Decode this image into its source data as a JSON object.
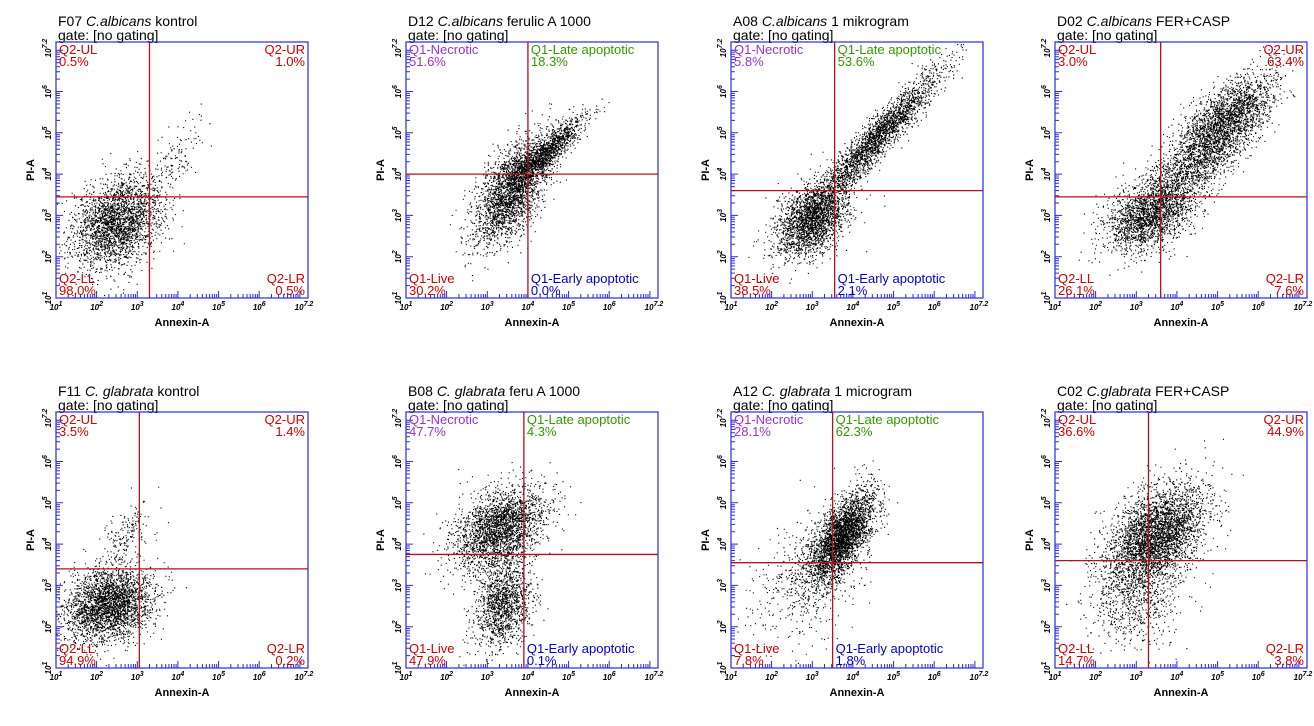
{
  "chart_data": [
    {
      "type": "scatter",
      "title_prefix": "F07",
      "title_species": "C.albicans",
      "title_suffix": "kontrol",
      "gate": "gate: [no gating]",
      "xlabel": "Annexin-A",
      "ylabel": "PI-A",
      "x_scale": "log",
      "y_scale": "log",
      "xlim": [
        1,
        7.2
      ],
      "ylim": [
        1,
        7.2
      ],
      "x_ticks": [
        "10^1",
        "10^2",
        "10^3",
        "10^4",
        "10^5",
        "10^6",
        "10^7.2"
      ],
      "y_ticks": [
        "10^1",
        "10^2",
        "10^3",
        "10^4",
        "10^5",
        "10^6",
        "10^7.2"
      ],
      "gate_x": 3.3,
      "gate_y": 3.45,
      "quadrants": {
        "ul": {
          "label": "Q2-UL",
          "value": "0.5%",
          "color": "#cc0000"
        },
        "ur": {
          "label": "Q2-UR",
          "value": "1.0%",
          "color": "#cc0000"
        },
        "ll": {
          "label": "Q2-LL",
          "value": "98.0%",
          "color": "#cc0000"
        },
        "lr": {
          "label": "Q2-LR",
          "value": "0.5%",
          "color": "#cc0000"
        }
      },
      "clusters": [
        {
          "x": 2.5,
          "y": 2.85,
          "sx": 0.55,
          "sy": 0.55,
          "r": 0.3,
          "n": 2600
        },
        {
          "x": 4.0,
          "y": 4.4,
          "sx": 0.3,
          "sy": 0.45,
          "r": 0.6,
          "n": 120
        }
      ]
    },
    {
      "type": "scatter",
      "title_prefix": "D12",
      "title_species": "C.albicans",
      "title_suffix": "ferulic A 1000",
      "gate": "gate: [no gating]",
      "xlabel": "Annexin-A",
      "ylabel": "PI-A",
      "x_scale": "log",
      "y_scale": "log",
      "xlim": [
        1,
        7.2
      ],
      "ylim": [
        1,
        7.2
      ],
      "x_ticks": [
        "10^1",
        "10^2",
        "10^3",
        "10^4",
        "10^5",
        "10^6",
        "10^7.2"
      ],
      "y_ticks": [
        "10^1",
        "10^2",
        "10^3",
        "10^4",
        "10^5",
        "10^6",
        "10^7.2"
      ],
      "gate_x": 4.0,
      "gate_y": 4.0,
      "quadrants": {
        "ul": {
          "label": "Q1-Necrotic",
          "value": "51.6%",
          "color": "#9933cc"
        },
        "ur": {
          "label": "Q1-Late apoptotic",
          "value": "18.3%",
          "color": "#339900"
        },
        "ll": {
          "label": "Q1-Live",
          "value": "30.2%",
          "color": "#cc0000"
        },
        "lr": {
          "label": "Q1-Early apoptotic",
          "value": "0.0%",
          "color": "#0000cc"
        }
      },
      "clusters": [
        {
          "x": 3.6,
          "y": 3.6,
          "sx": 0.45,
          "sy": 0.65,
          "r": 0.55,
          "n": 2400
        },
        {
          "x": 4.4,
          "y": 4.5,
          "sx": 0.5,
          "sy": 0.45,
          "r": 0.9,
          "n": 1400
        }
      ]
    },
    {
      "type": "scatter",
      "title_prefix": "A08",
      "title_species": "C.albicans",
      "title_suffix": "1 mikrogram",
      "gate": "gate: [no gating]",
      "xlabel": "Annexin-A",
      "ylabel": "PI-A",
      "x_scale": "log",
      "y_scale": "log",
      "xlim": [
        1,
        7.2
      ],
      "ylim": [
        1,
        7.2
      ],
      "x_ticks": [
        "10^1",
        "10^2",
        "10^3",
        "10^4",
        "10^5",
        "10^6",
        "10^7.2"
      ],
      "y_ticks": [
        "10^1",
        "10^2",
        "10^3",
        "10^4",
        "10^5",
        "10^6",
        "10^7.2"
      ],
      "gate_x": 3.55,
      "gate_y": 3.6,
      "quadrants": {
        "ul": {
          "label": "Q1-Necrotic",
          "value": "5.8%",
          "color": "#9933cc"
        },
        "ur": {
          "label": "Q1-Late apoptotic",
          "value": "53.6%",
          "color": "#339900"
        },
        "ll": {
          "label": "Q1-Live",
          "value": "38.5%",
          "color": "#cc0000"
        },
        "lr": {
          "label": "Q1-Early apoptotic",
          "value": "2.1%",
          "color": "#0000cc"
        }
      },
      "clusters": [
        {
          "x": 3.0,
          "y": 2.9,
          "sx": 0.45,
          "sy": 0.45,
          "r": 0.4,
          "n": 2300
        },
        {
          "x": 4.6,
          "y": 4.9,
          "sx": 0.8,
          "sy": 0.85,
          "r": 0.95,
          "n": 2400
        }
      ]
    },
    {
      "type": "scatter",
      "title_prefix": "D02",
      "title_species": "C.albicans",
      "title_suffix": "FER+CASP",
      "gate": "gate: [no gating]",
      "xlabel": "Annexin-A",
      "ylabel": "PI-A",
      "x_scale": "log",
      "y_scale": "log",
      "xlim": [
        1,
        7.2
      ],
      "ylim": [
        1,
        7.2
      ],
      "x_ticks": [
        "10^1",
        "10^2",
        "10^3",
        "10^4",
        "10^5",
        "10^6",
        "10^7.2"
      ],
      "y_ticks": [
        "10^1",
        "10^2",
        "10^3",
        "10^4",
        "10^5",
        "10^6",
        "10^7.2"
      ],
      "gate_x": 3.6,
      "gate_y": 3.45,
      "quadrants": {
        "ul": {
          "label": "Q2-UL",
          "value": "3.0%",
          "color": "#cc0000"
        },
        "ur": {
          "label": "Q2-UR",
          "value": "63.4%",
          "color": "#cc0000"
        },
        "ll": {
          "label": "Q2-LL",
          "value": "26.1%",
          "color": "#cc0000"
        },
        "lr": {
          "label": "Q2-LR",
          "value": "7.6%",
          "color": "#cc0000"
        }
      },
      "clusters": [
        {
          "x": 3.3,
          "y": 3.0,
          "sx": 0.55,
          "sy": 0.45,
          "r": 0.4,
          "n": 2000
        },
        {
          "x": 4.8,
          "y": 4.7,
          "sx": 0.75,
          "sy": 0.75,
          "r": 0.8,
          "n": 2600
        },
        {
          "x": 5.3,
          "y": 5.6,
          "sx": 0.55,
          "sy": 0.4,
          "r": 0.6,
          "n": 800
        }
      ]
    },
    {
      "type": "scatter",
      "title_prefix": "F11",
      "title_species": "C. glabrata",
      "title_suffix": "kontrol",
      "gate": "gate: [no gating]",
      "xlabel": "Annexin-A",
      "ylabel": "PI-A",
      "x_scale": "log",
      "y_scale": "log",
      "xlim": [
        1,
        7.2
      ],
      "ylim": [
        1,
        7.2
      ],
      "x_ticks": [
        "10^1",
        "10^2",
        "10^3",
        "10^4",
        "10^5",
        "10^6",
        "10^7.2"
      ],
      "y_ticks": [
        "10^1",
        "10^2",
        "10^3",
        "10^4",
        "10^5",
        "10^6",
        "10^7.2"
      ],
      "gate_x": 3.05,
      "gate_y": 3.4,
      "quadrants": {
        "ul": {
          "label": "Q2-UL",
          "value": "3.5%",
          "color": "#cc0000"
        },
        "ur": {
          "label": "Q2-UR",
          "value": "1.4%",
          "color": "#cc0000"
        },
        "ll": {
          "label": "Q2-LL",
          "value": "94.9%",
          "color": "#cc0000"
        },
        "lr": {
          "label": "Q2-LR",
          "value": "0.2%",
          "color": "#cc0000"
        }
      },
      "clusters": [
        {
          "x": 2.3,
          "y": 2.55,
          "sx": 0.55,
          "sy": 0.45,
          "r": 0.2,
          "n": 2800
        },
        {
          "x": 2.8,
          "y": 4.3,
          "sx": 0.3,
          "sy": 0.35,
          "r": 0.5,
          "n": 160
        }
      ]
    },
    {
      "type": "scatter",
      "title_prefix": "B08",
      "title_species": "C. glabrata",
      "title_suffix": "feru A 1000",
      "gate": "gate: [no gating]",
      "xlabel": "Annexin-A",
      "ylabel": "PI-A",
      "x_scale": "log",
      "y_scale": "log",
      "xlim": [
        1,
        7.2
      ],
      "ylim": [
        1,
        7.2
      ],
      "x_ticks": [
        "10^1",
        "10^2",
        "10^3",
        "10^4",
        "10^5",
        "10^6",
        "10^7.2"
      ],
      "y_ticks": [
        "10^1",
        "10^2",
        "10^3",
        "10^4",
        "10^5",
        "10^6",
        "10^7.2"
      ],
      "gate_x": 3.9,
      "gate_y": 3.75,
      "quadrants": {
        "ul": {
          "label": "Q1-Necrotic",
          "value": "47.7%",
          "color": "#9933cc"
        },
        "ur": {
          "label": "Q1-Late apoptotic",
          "value": "4.3%",
          "color": "#339900"
        },
        "ll": {
          "label": "Q1-Live",
          "value": "47.9%",
          "color": "#cc0000"
        },
        "lr": {
          "label": "Q1-Early apoptotic",
          "value": "0.1%",
          "color": "#0000cc"
        }
      },
      "clusters": [
        {
          "x": 3.3,
          "y": 4.4,
          "sx": 0.55,
          "sy": 0.5,
          "r": 0.4,
          "n": 2500
        },
        {
          "x": 3.4,
          "y": 2.6,
          "sx": 0.35,
          "sy": 0.55,
          "r": 0.2,
          "n": 1400
        }
      ]
    },
    {
      "type": "scatter",
      "title_prefix": "A12",
      "title_species": "C. glabrata",
      "title_suffix": "1 microgram",
      "gate": "gate: [no gating]",
      "xlabel": "Annexin-A",
      "ylabel": "PI-A",
      "x_scale": "log",
      "y_scale": "log",
      "xlim": [
        1,
        7.2
      ],
      "ylim": [
        1,
        7.2
      ],
      "x_ticks": [
        "10^1",
        "10^2",
        "10^3",
        "10^4",
        "10^5",
        "10^6",
        "10^7.2"
      ],
      "y_ticks": [
        "10^1",
        "10^2",
        "10^3",
        "10^4",
        "10^5",
        "10^6",
        "10^7.2"
      ],
      "gate_x": 3.5,
      "gate_y": 3.55,
      "quadrants": {
        "ul": {
          "label": "Q1-Necrotic",
          "value": "28.1%",
          "color": "#9933cc"
        },
        "ur": {
          "label": "Q1-Late apoptotic",
          "value": "62.3%",
          "color": "#339900"
        },
        "ll": {
          "label": "Q1-Live",
          "value": "7.8%",
          "color": "#cc0000"
        },
        "lr": {
          "label": "Q1-Early apoptotic",
          "value": "1.8%",
          "color": "#0000cc"
        }
      },
      "clusters": [
        {
          "x": 3.7,
          "y": 4.15,
          "sx": 0.4,
          "sy": 0.55,
          "r": 0.65,
          "n": 3200
        },
        {
          "x": 2.8,
          "y": 3.2,
          "sx": 0.7,
          "sy": 0.8,
          "r": 0.3,
          "n": 500
        }
      ]
    },
    {
      "type": "scatter",
      "title_prefix": "C02",
      "title_species": "C.glabrata",
      "title_suffix": "FER+CASP",
      "gate": "gate: [no gating]",
      "xlabel": "Annexin-A",
      "ylabel": "PI-A",
      "x_scale": "log",
      "y_scale": "log",
      "xlim": [
        1,
        7.2
      ],
      "ylim": [
        1,
        7.2
      ],
      "x_ticks": [
        "10^1",
        "10^2",
        "10^3",
        "10^4",
        "10^5",
        "10^6",
        "10^7.2"
      ],
      "y_ticks": [
        "10^1",
        "10^2",
        "10^3",
        "10^4",
        "10^5",
        "10^6",
        "10^7.2"
      ],
      "gate_x": 3.3,
      "gate_y": 3.6,
      "quadrants": {
        "ul": {
          "label": "Q2-UL",
          "value": "36.6%",
          "color": "#cc0000"
        },
        "ur": {
          "label": "Q2-UR",
          "value": "44.9%",
          "color": "#cc0000"
        },
        "ll": {
          "label": "Q2-LL",
          "value": "14.7%",
          "color": "#cc0000"
        },
        "lr": {
          "label": "Q2-LR",
          "value": "3.8%",
          "color": "#cc0000"
        }
      },
      "clusters": [
        {
          "x": 3.5,
          "y": 4.25,
          "sx": 0.6,
          "sy": 0.6,
          "r": 0.45,
          "n": 3400
        },
        {
          "x": 3.0,
          "y": 2.8,
          "sx": 0.6,
          "sy": 0.65,
          "r": 0.1,
          "n": 800
        }
      ]
    }
  ]
}
